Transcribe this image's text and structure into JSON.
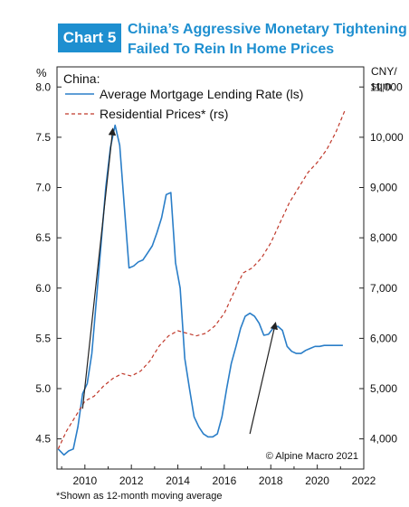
{
  "header": {
    "badge": "Chart 5",
    "title_line1": "China’s Aggressive Monetary Tightening",
    "title_line2": "Failed To Rein In Home Prices"
  },
  "colors": {
    "accent": "#1e8fd0",
    "mortgage_line": "#2a7ec8",
    "prices_line": "#c0392b",
    "arrow": "#222222"
  },
  "chart_data": {
    "type": "line",
    "panel_label": "China:",
    "y_left_unit": "%",
    "y_right_unit_line1": "CNY/",
    "y_right_unit_line2": "sqm",
    "y_left_range": [
      4.2,
      8.2
    ],
    "y_right_range": [
      3400,
      11400
    ],
    "x_range": [
      2008.8,
      2022.0
    ],
    "x_ticks": [
      "2010",
      "2012",
      "2014",
      "2016",
      "2018",
      "2020",
      "2022"
    ],
    "y_left_ticks": [
      "4.5",
      "5.0",
      "5.5",
      "6.0",
      "6.5",
      "7.0",
      "7.5",
      "8.0"
    ],
    "y_right_ticks": [
      "4,000",
      "5,000",
      "6,000",
      "7,000",
      "8,000",
      "9,000",
      "10,000",
      "11,000"
    ],
    "grid": false,
    "legend_position": "top-left",
    "series": [
      {
        "name": "Average Mortgage Lending Rate (ls)",
        "axis": "left",
        "style": "solid",
        "x": [
          2008.85,
          2009.1,
          2009.3,
          2009.5,
          2009.7,
          2009.9,
          2010.1,
          2010.3,
          2010.5,
          2010.7,
          2010.9,
          2011.1,
          2011.3,
          2011.5,
          2011.7,
          2011.9,
          2012.1,
          2012.3,
          2012.5,
          2012.7,
          2012.9,
          2013.1,
          2013.3,
          2013.5,
          2013.7,
          2013.9,
          2014.1,
          2014.3,
          2014.5,
          2014.7,
          2014.9,
          2015.1,
          2015.3,
          2015.5,
          2015.7,
          2015.9,
          2016.1,
          2016.3,
          2016.5,
          2016.7,
          2016.9,
          2017.1,
          2017.3,
          2017.5,
          2017.7,
          2017.9,
          2018.1,
          2018.3,
          2018.5,
          2018.7,
          2018.9,
          2019.1,
          2019.3,
          2019.5,
          2019.7,
          2019.9,
          2020.1,
          2020.3,
          2020.5,
          2020.7,
          2020.9,
          2021.1
        ],
        "values": [
          4.4,
          4.34,
          4.38,
          4.4,
          4.62,
          4.95,
          5.05,
          5.35,
          5.9,
          6.45,
          7.0,
          7.4,
          7.62,
          7.42,
          6.8,
          6.2,
          6.22,
          6.26,
          6.28,
          6.35,
          6.42,
          6.55,
          6.7,
          6.93,
          6.95,
          6.25,
          6.0,
          5.3,
          5.0,
          4.72,
          4.62,
          4.55,
          4.52,
          4.52,
          4.55,
          4.72,
          5.0,
          5.25,
          5.42,
          5.6,
          5.72,
          5.75,
          5.72,
          5.65,
          5.53,
          5.54,
          5.6,
          5.62,
          5.58,
          5.42,
          5.37,
          5.35,
          5.35,
          5.38,
          5.4,
          5.42,
          5.42,
          5.43,
          5.43,
          5.43,
          5.43,
          5.43
        ]
      },
      {
        "name": "Residential Prices* (rs)",
        "axis": "right",
        "style": "dashed",
        "x": [
          2008.85,
          2009.2,
          2009.6,
          2010.0,
          2010.4,
          2010.8,
          2011.2,
          2011.6,
          2012.0,
          2012.4,
          2012.8,
          2013.2,
          2013.6,
          2014.0,
          2014.4,
          2014.8,
          2015.2,
          2015.6,
          2016.0,
          2016.4,
          2016.8,
          2017.2,
          2017.6,
          2018.0,
          2018.4,
          2018.8,
          2019.2,
          2019.6,
          2020.0,
          2020.4,
          2020.8,
          2021.2
        ],
        "values": [
          3800,
          4150,
          4450,
          4750,
          4850,
          5050,
          5200,
          5300,
          5250,
          5350,
          5550,
          5850,
          6050,
          6150,
          6100,
          6050,
          6100,
          6250,
          6500,
          6900,
          7300,
          7400,
          7600,
          7900,
          8300,
          8700,
          9000,
          9300,
          9500,
          9750,
          10100,
          10550
        ]
      }
    ],
    "annotations": {
      "copyright": "© Alpine Macro 2021",
      "arrows": [
        {
          "from": [
            2009.9,
            4.8
          ],
          "to": [
            2011.2,
            7.58
          ]
        },
        {
          "from": [
            2017.1,
            4.55
          ],
          "to": [
            2018.2,
            5.65
          ]
        }
      ]
    },
    "footnote": "*Shown as 12-month moving average"
  }
}
